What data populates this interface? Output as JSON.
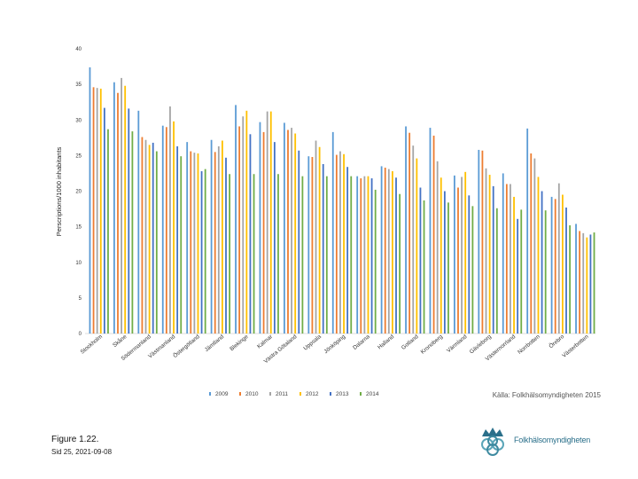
{
  "chart_data": {
    "type": "bar",
    "title": "",
    "xlabel": "",
    "ylabel": "Perscriptions/1000 inhabitants",
    "ylim": [
      0,
      40
    ],
    "yticks": [
      0,
      5,
      10,
      15,
      20,
      25,
      30,
      35,
      40
    ],
    "grid": false,
    "legend_position": "bottom",
    "categories": [
      "Stockholm",
      "Skåne",
      "Södermanland",
      "Västmanland",
      "Östergötland",
      "Jämtland",
      "Blekinge",
      "Kalmar",
      "Västra Götaland",
      "Uppsala",
      "Jönköping",
      "Dalarna",
      "Halland",
      "Gotland",
      "Kronoberg",
      "Värmland",
      "Gävleborg",
      "Västernorrland",
      "Norrbotten",
      "Örebro",
      "Västerbotten"
    ],
    "series": [
      {
        "name": "2009",
        "color": "#5b9bd5",
        "values": [
          37.4,
          35.3,
          31.3,
          29.2,
          26.9,
          27.2,
          32.1,
          29.7,
          29.6,
          24.9,
          28.3,
          22.1,
          23.5,
          29.1,
          28.9,
          22.2,
          25.8,
          22.5,
          28.8,
          19.2,
          15.4
        ]
      },
      {
        "name": "2010",
        "color": "#ed7d31",
        "values": [
          34.6,
          33.8,
          27.6,
          29.0,
          25.6,
          25.5,
          29.1,
          28.3,
          28.6,
          24.8,
          25.1,
          21.8,
          23.3,
          28.2,
          27.8,
          20.5,
          25.7,
          21.0,
          25.3,
          18.9,
          14.4
        ]
      },
      {
        "name": "2011",
        "color": "#a5a5a5",
        "values": [
          34.5,
          35.9,
          27.2,
          31.9,
          25.4,
          26.3,
          30.5,
          31.2,
          28.9,
          27.1,
          25.6,
          22.1,
          23.1,
          26.4,
          24.2,
          22.0,
          23.2,
          21.0,
          24.6,
          21.1,
          14.1
        ]
      },
      {
        "name": "2012",
        "color": "#ffc000",
        "values": [
          34.4,
          34.8,
          26.5,
          29.8,
          25.3,
          27.1,
          31.3,
          31.2,
          28.1,
          26.2,
          25.2,
          22.1,
          22.8,
          24.6,
          21.9,
          22.7,
          22.3,
          19.2,
          22.0,
          19.5,
          13.5
        ]
      },
      {
        "name": "2013",
        "color": "#4472c4",
        "values": [
          31.7,
          31.6,
          26.8,
          26.3,
          22.8,
          24.7,
          28.0,
          26.9,
          25.7,
          23.8,
          23.4,
          21.8,
          21.9,
          20.5,
          20.0,
          19.4,
          20.7,
          16.1,
          20.0,
          17.7,
          13.9
        ]
      },
      {
        "name": "2014",
        "color": "#70ad47",
        "values": [
          28.7,
          28.4,
          25.6,
          24.9,
          23.1,
          22.4,
          22.4,
          22.4,
          22.1,
          22.1,
          22.1,
          20.2,
          19.6,
          18.7,
          18.4,
          17.9,
          17.6,
          17.4,
          17.3,
          15.2,
          14.2
        ]
      }
    ]
  },
  "source": "Källa: Folkhälsomyndigheten 2015",
  "caption": "Figure 1.22.",
  "footer": "Sid 25, 2021-09-08",
  "logo_text": "Folkhälsomyndigheten"
}
